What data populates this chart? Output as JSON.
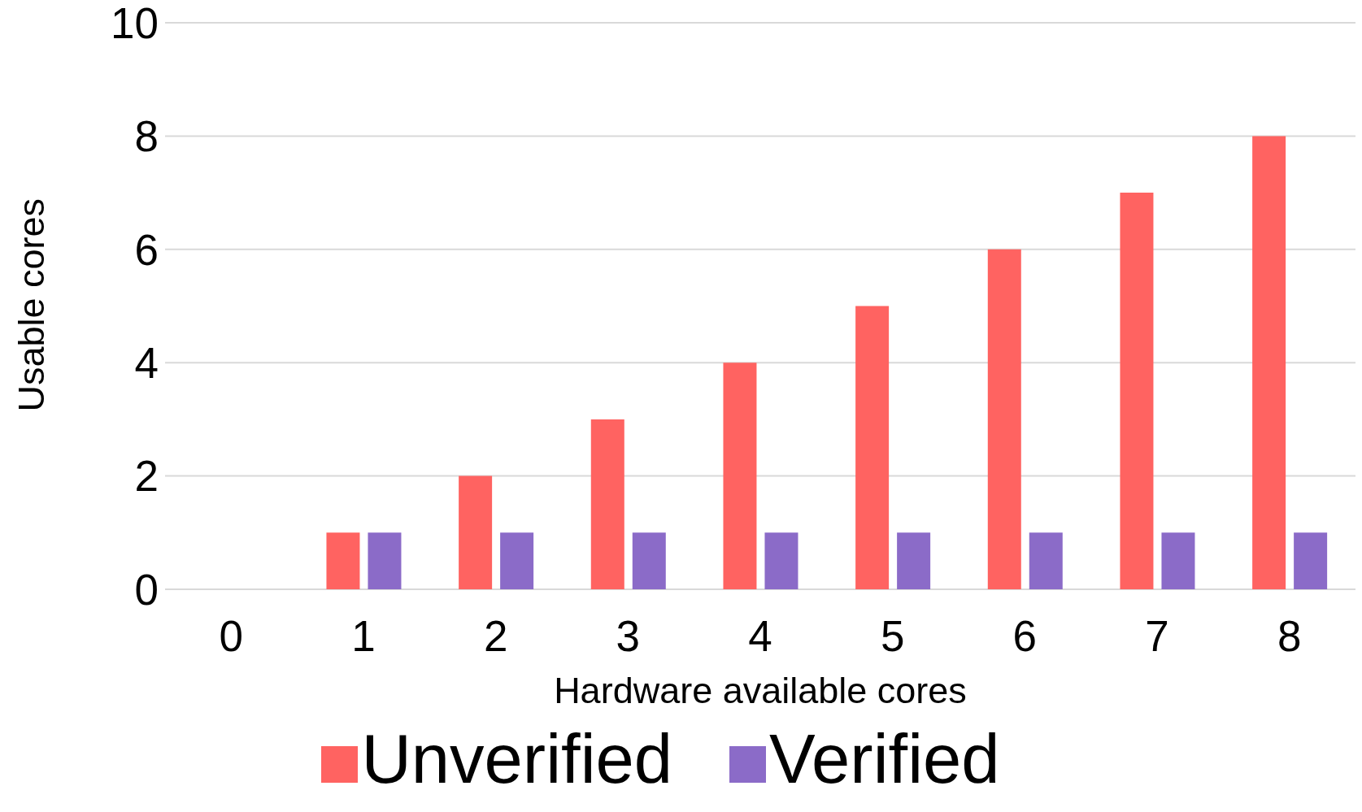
{
  "chart_data": {
    "type": "bar",
    "xlabel": "Hardware available cores",
    "ylabel": "Usable cores",
    "categories": [
      "0",
      "1",
      "2",
      "3",
      "4",
      "5",
      "6",
      "7",
      "8"
    ],
    "series": [
      {
        "name": "Unverified",
        "color": "#ff6361",
        "values": [
          0,
          1,
          2,
          3,
          4,
          5,
          6,
          7,
          8
        ]
      },
      {
        "name": "Verified",
        "color": "#8b6bc8",
        "values": [
          0,
          1,
          1,
          1,
          1,
          1,
          1,
          1,
          1
        ]
      }
    ],
    "ylim": [
      0,
      10
    ],
    "yticks": [
      0,
      2,
      4,
      6,
      8,
      10
    ],
    "grid": "y",
    "legend": "bottom"
  }
}
